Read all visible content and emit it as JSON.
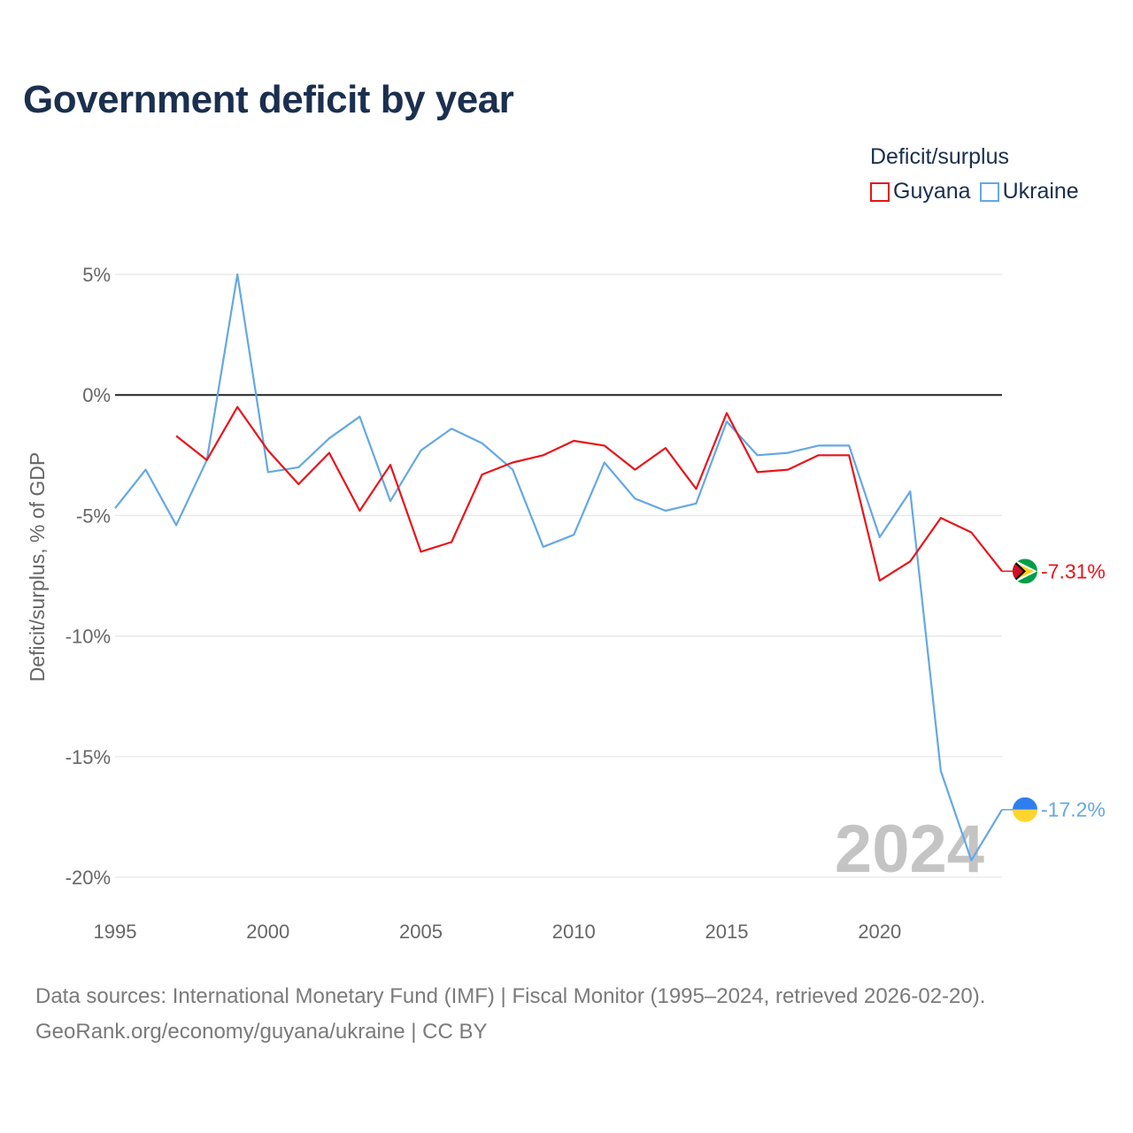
{
  "chart_data": {
    "type": "line",
    "title": "Government deficit by year",
    "ylabel": "Deficit/surplus, % of GDP",
    "xlabel": "",
    "xlim": [
      1995,
      2024
    ],
    "ylim": [
      -20,
      5
    ],
    "x_ticks": [
      1995,
      2000,
      2005,
      2010,
      2015,
      2020
    ],
    "x_tick_labels": [
      "1995",
      "2000",
      "2005",
      "2010",
      "2015",
      "2020"
    ],
    "y_ticks": [
      5,
      0,
      -5,
      -10,
      -15,
      -20
    ],
    "y_tick_labels": [
      "5%",
      "0%",
      "-5%",
      "-10%",
      "-15%",
      "-20%"
    ],
    "legend_title": "Deficit/surplus",
    "legend_position": "top-right",
    "year_watermark": "2024",
    "series": [
      {
        "name": "Guyana",
        "color": "#e8141b",
        "end_label": "-7.31%",
        "flag_icon": "guyana-flag-icon",
        "x": [
          1997,
          1998,
          1999,
          2000,
          2001,
          2002,
          2003,
          2004,
          2005,
          2006,
          2007,
          2008,
          2009,
          2010,
          2011,
          2012,
          2013,
          2014,
          2015,
          2016,
          2017,
          2018,
          2019,
          2020,
          2021,
          2022,
          2023,
          2024
        ],
        "values": [
          -1.7,
          -2.7,
          -0.5,
          -2.3,
          -3.7,
          -2.4,
          -4.8,
          -2.9,
          -6.5,
          -6.1,
          -3.3,
          -2.8,
          -2.5,
          -1.9,
          -2.1,
          -3.1,
          -2.2,
          -3.9,
          -0.75,
          -3.2,
          -3.1,
          -2.5,
          -2.5,
          -7.7,
          -6.9,
          -5.1,
          -5.7,
          -7.31
        ]
      },
      {
        "name": "Ukraine",
        "color": "#64a8e4",
        "end_label": "-17.2%",
        "flag_icon": "ukraine-flag-icon",
        "x": [
          1995,
          1996,
          1997,
          1998,
          1999,
          2000,
          2001,
          2002,
          2003,
          2004,
          2005,
          2006,
          2007,
          2008,
          2009,
          2010,
          2011,
          2012,
          2013,
          2014,
          2015,
          2016,
          2017,
          2018,
          2019,
          2020,
          2021,
          2022,
          2023,
          2024
        ],
        "values": [
          -4.7,
          -3.1,
          -5.4,
          -2.7,
          5.0,
          -3.2,
          -3.0,
          -1.8,
          -0.9,
          -4.4,
          -2.3,
          -1.4,
          -2.0,
          -3.1,
          -6.3,
          -5.8,
          -2.8,
          -4.3,
          -4.8,
          -4.5,
          -1.1,
          -2.5,
          -2.4,
          -2.1,
          -2.1,
          -5.9,
          -4.0,
          -15.6,
          -19.3,
          -17.2
        ]
      }
    ]
  },
  "footer": {
    "line1": "Data sources: International Monetary Fund (IMF) | Fiscal Monitor (1995–2024, retrieved 2026-02-20).",
    "line2": "GeoRank.org/economy/guyana/ukraine | CC BY"
  }
}
